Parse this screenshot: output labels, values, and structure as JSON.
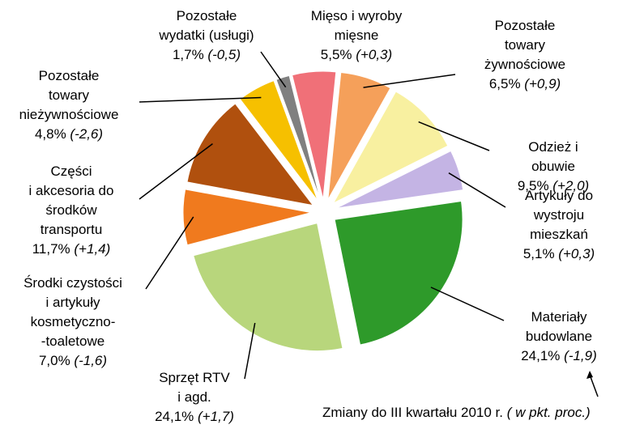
{
  "chart_data": {
    "type": "pie",
    "labels": [
      "Mięso i wyroby\nmięsne",
      "Pozostałe\ntowary\nżywnościowe",
      "Odzież i obuwie",
      "Artykuły do\nwystroju\nmieszkań",
      "Materiały\nbudowlane",
      "Sprzęt RTV\ni agd.",
      "Środki czystości\ni artykuły\nkosmetyczno-\n-toaletowe",
      "Części\ni akcesoria do\nśrodków\ntransportu",
      "Pozostałe\ntowary\nnieżywnościowe",
      "Pozostałe\nwydatki (usługi)"
    ],
    "values": [
      5.5,
      6.5,
      9.5,
      5.1,
      24.1,
      24.1,
      7.0,
      11.7,
      4.8,
      1.7
    ],
    "value_labels": [
      "5,5%",
      "6,5%",
      "9,5%",
      "5,1%",
      "24,1%",
      "24,1%",
      "7,0%",
      "11,7%",
      "4,8%",
      "1,7%"
    ],
    "change_labels": [
      "(+0,3)",
      "(+0,9)",
      "(+2,0)",
      "(+0,3)",
      "(-1,9)",
      "(+1,7)",
      "(-1,6)",
      "(+1,4)",
      "(-2,6)",
      "(-0,5)"
    ],
    "colors": [
      "#f07078",
      "#f5a05a",
      "#f8f0a0",
      "#c4b4e4",
      "#2e9a2a",
      "#b8d67c",
      "#f07a1e",
      "#b0500e",
      "#f6c000",
      "#808080"
    ],
    "note": "Zmiany do III kwartału 2010 r.",
    "note_unit": "( w pkt. proc.)"
  }
}
